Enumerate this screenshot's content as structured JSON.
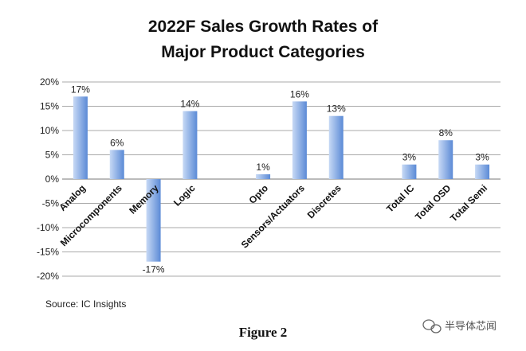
{
  "chart_data": {
    "type": "bar",
    "title_lines": [
      "2022F Sales Growth Rates of",
      "Major Product Categories"
    ],
    "categories": [
      "Analog",
      "Microcomponents",
      "Memory",
      "Logic",
      "Opto",
      "Sensors/Actuators",
      "Discretes",
      "Total IC",
      "Total OSD",
      "Total Semi"
    ],
    "values": [
      17,
      6,
      -17,
      14,
      1,
      16,
      13,
      3,
      8,
      3
    ],
    "value_labels": [
      "17%",
      "6%",
      "-17%",
      "14%",
      "1%",
      "16%",
      "13%",
      "3%",
      "8%",
      "3%"
    ],
    "ylim": [
      -20,
      20
    ],
    "ytick_values": [
      20,
      15,
      10,
      5,
      0,
      -5,
      -10,
      -15,
      -20
    ],
    "ytick_labels": [
      "20%",
      "15%",
      "10%",
      "5%",
      "0%",
      "-5%",
      "-10%",
      "-15%",
      "-20%"
    ],
    "slot_positions": [
      0,
      1,
      2,
      3,
      5,
      6,
      7,
      9,
      10,
      11
    ],
    "slot_count": 12,
    "xlabel": "",
    "ylabel": "",
    "grid": true,
    "bar_color_light": "#c7d9f5",
    "bar_color_dark": "#5b8ad6"
  },
  "source_text": "Source:  IC Insights",
  "figure_caption": "Figure 2",
  "watermark": "半导体芯闻"
}
